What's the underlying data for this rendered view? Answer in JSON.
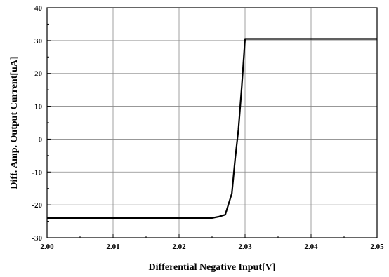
{
  "chart_data": {
    "type": "line",
    "title": "",
    "xlabel": "Differential Negative Input[V]",
    "ylabel": "Diff. Amp. Output Current[uA]",
    "xlim": [
      2.0,
      2.05
    ],
    "ylim": [
      -30,
      40
    ],
    "x_ticks": [
      2.0,
      2.01,
      2.02,
      2.03,
      2.04,
      2.05
    ],
    "x_tick_labels": [
      "2.00",
      "2.01",
      "2.02",
      "2.03",
      "2.04",
      "2.05"
    ],
    "y_ticks": [
      -30,
      -20,
      -10,
      0,
      10,
      20,
      30,
      40
    ],
    "y_tick_labels": [
      "-30",
      "-20",
      "-10",
      "0",
      "10",
      "20",
      "30",
      "40"
    ],
    "grid": true,
    "legend": "none",
    "line_color": "#000000",
    "series": [
      {
        "x": [
          2.0,
          2.005,
          2.01,
          2.015,
          2.02,
          2.025,
          2.026,
          2.027,
          2.028,
          2.0285,
          2.029,
          2.0295,
          2.03,
          2.035,
          2.04,
          2.045,
          2.05
        ],
        "y": [
          -24.0,
          -24.0,
          -24.0,
          -24.0,
          -24.0,
          -24.0,
          -23.6,
          -23.0,
          -16.5,
          -6.0,
          3.0,
          16.0,
          30.5,
          30.5,
          30.5,
          30.5,
          30.5
        ]
      }
    ]
  }
}
